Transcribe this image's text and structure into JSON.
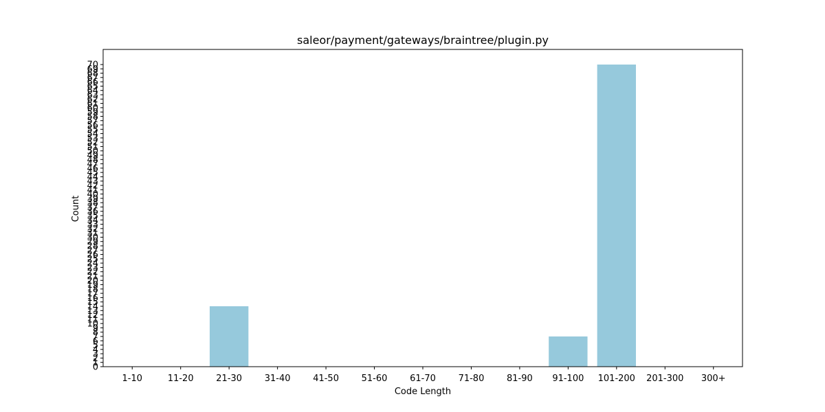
{
  "chart_data": {
    "type": "bar",
    "title": "saleor/payment/gateways/braintree/plugin.py",
    "xlabel": "Code Length",
    "ylabel": "Count",
    "categories": [
      "1-10",
      "11-20",
      "21-30",
      "31-40",
      "41-50",
      "51-60",
      "61-70",
      "71-80",
      "81-90",
      "91-100",
      "101-200",
      "201-300",
      "300+"
    ],
    "values": [
      0,
      0,
      14,
      0,
      0,
      0,
      0,
      0,
      0,
      7,
      70,
      0,
      0
    ],
    "ylim": [
      0,
      73.5
    ],
    "yticks": [
      0,
      1,
      2,
      3,
      4,
      5,
      6,
      7,
      8,
      9,
      10,
      11,
      12,
      13,
      14,
      15,
      16,
      17,
      18,
      19,
      20,
      21,
      22,
      23,
      24,
      25,
      26,
      27,
      28,
      29,
      30,
      31,
      32,
      33,
      34,
      35,
      36,
      37,
      38,
      39,
      40,
      41,
      42,
      43,
      44,
      45,
      46,
      47,
      48,
      49,
      50,
      51,
      52,
      53,
      54,
      55,
      56,
      57,
      58,
      59,
      60,
      61,
      62,
      63,
      64,
      65,
      66,
      67,
      68,
      69,
      70
    ],
    "bar_color": "#96c9dc",
    "grid": false,
    "legend": "none"
  }
}
